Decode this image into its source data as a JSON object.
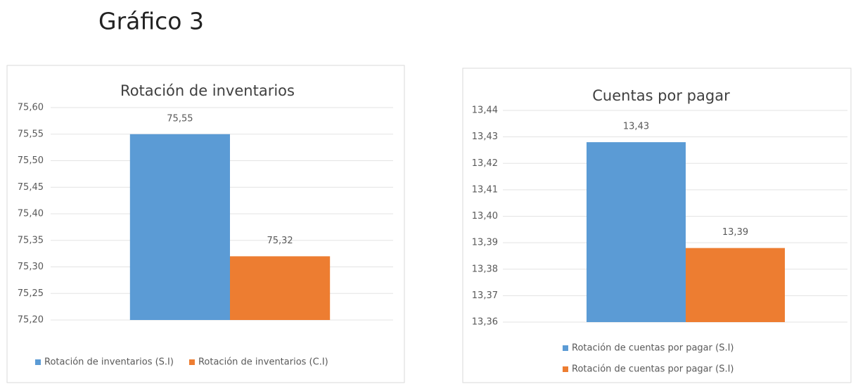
{
  "title": "Gráfico 3",
  "chart_data": [
    {
      "type": "bar",
      "title": "Rotación de inventarios",
      "categories": [
        null
      ],
      "series": [
        {
          "name": "Rotación de inventarios (S.I)",
          "color": "#5b9bd5",
          "values": [
            75.55
          ],
          "value_labels": [
            "75,55"
          ]
        },
        {
          "name": "Rotación de inventarios (C.I)",
          "color": "#ed7d31",
          "values": [
            75.32
          ],
          "value_labels": [
            "75,32"
          ]
        }
      ],
      "ylim": [
        75.2,
        75.6
      ],
      "yticks": [
        {
          "value": 75.2,
          "label": "75,20"
        },
        {
          "value": 75.25,
          "label": "75,25"
        },
        {
          "value": 75.3,
          "label": "75,30"
        },
        {
          "value": 75.35,
          "label": "75,35"
        },
        {
          "value": 75.4,
          "label": "75,40"
        },
        {
          "value": 75.45,
          "label": "75,45"
        },
        {
          "value": 75.5,
          "label": "75,50"
        },
        {
          "value": 75.55,
          "label": "75,55"
        },
        {
          "value": 75.6,
          "label": "75,60"
        }
      ],
      "grid": true,
      "legend": "bottom"
    },
    {
      "type": "bar",
      "title": "Cuentas por pagar",
      "categories": [
        null
      ],
      "series": [
        {
          "name": "Rotación de cuentas por pagar (S.I)",
          "color": "#5b9bd5",
          "values": [
            13.428
          ],
          "value_labels": [
            "13,43"
          ]
        },
        {
          "name": "Rotación de cuentas por pagar (S.I)",
          "color": "#ed7d31",
          "values": [
            13.388
          ],
          "value_labels": [
            "13,39"
          ]
        }
      ],
      "ylim": [
        13.36,
        13.44
      ],
      "yticks": [
        {
          "value": 13.36,
          "label": "13,36"
        },
        {
          "value": 13.37,
          "label": "13,37"
        },
        {
          "value": 13.38,
          "label": "13,38"
        },
        {
          "value": 13.39,
          "label": "13,39"
        },
        {
          "value": 13.4,
          "label": "13,40"
        },
        {
          "value": 13.41,
          "label": "13,41"
        },
        {
          "value": 13.42,
          "label": "13,42"
        },
        {
          "value": 13.43,
          "label": "13,43"
        },
        {
          "value": 13.44,
          "label": "13,44"
        }
      ],
      "grid": true,
      "legend": "bottom"
    }
  ]
}
